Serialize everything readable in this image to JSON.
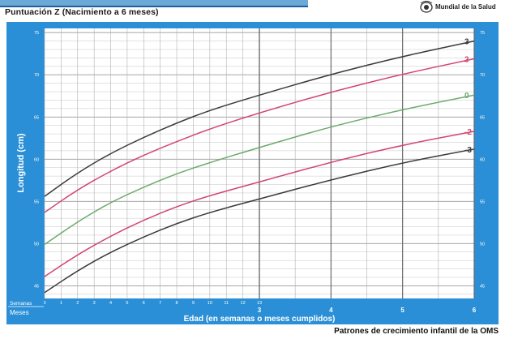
{
  "header": {
    "subtitle": "Puntuación Z (Nacimiento a 6 meses)",
    "org_text": "Mundial de la Salud"
  },
  "footer": {
    "text": "Patrones de crecimiento infantil de la OMS"
  },
  "colors": {
    "panel_bg": "#2a8fd6",
    "plot_bg": "#ffffff",
    "grid_fine": "#c6c6c6",
    "grid_major": "#6a6a6a",
    "sd3": "#3a3a3a",
    "sd2": "#d2466f",
    "sd0": "#6aaa6a"
  },
  "chart_data": {
    "type": "line",
    "title": "",
    "xlabel": "Edad (en semanas o meses cumplidos)",
    "ylabel": "Longitud (cm)",
    "x_row_label_weeks": "Semanas",
    "x_row_label_months": "Meses",
    "week_ticks": [
      "0",
      "1",
      "2",
      "3",
      "4",
      "5",
      "6",
      "7",
      "8",
      "9",
      "10",
      "11",
      "12",
      "13"
    ],
    "month_ticks": [
      "3",
      "4",
      "5",
      "6"
    ],
    "y_ticks": [
      "45",
      "50",
      "55",
      "60",
      "65",
      "70",
      "75"
    ],
    "xlim_weeks": [
      0,
      26
    ],
    "ylim": [
      43.5,
      75.5
    ],
    "grid": true,
    "x_weeks": [
      0,
      2,
      4,
      6,
      8,
      10,
      13,
      17.4,
      21.7,
      26
    ],
    "series": [
      {
        "name": "3",
        "color": "#3a3a3a",
        "values": [
          55.6,
          58.4,
          60.7,
          62.6,
          64.3,
          65.8,
          67.6,
          70.1,
          72.2,
          74.0
        ]
      },
      {
        "name": "2",
        "color": "#d2466f",
        "values": [
          53.7,
          56.4,
          58.6,
          60.5,
          62.1,
          63.6,
          65.5,
          68.0,
          70.1,
          71.9
        ]
      },
      {
        "name": "0",
        "color": "#6aaa6a",
        "values": [
          49.9,
          52.6,
          54.9,
          56.7,
          58.3,
          59.6,
          61.4,
          63.9,
          65.9,
          67.6
        ]
      },
      {
        "name": "-2",
        "color": "#d2466f",
        "values": [
          46.1,
          48.7,
          50.9,
          52.8,
          54.4,
          55.7,
          57.3,
          59.7,
          61.7,
          63.3
        ]
      },
      {
        "name": "-3",
        "color": "#3a3a3a",
        "values": [
          44.2,
          46.8,
          49.0,
          50.8,
          52.4,
          53.7,
          55.3,
          57.6,
          59.6,
          61.2
        ]
      }
    ]
  }
}
